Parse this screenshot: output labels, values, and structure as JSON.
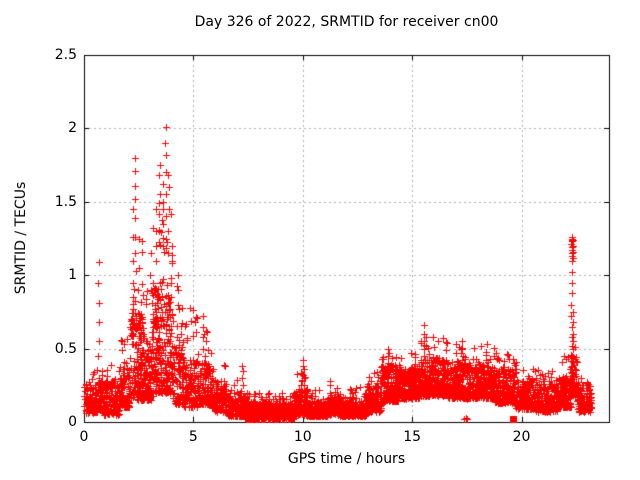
{
  "chart_data": {
    "type": "scatter",
    "title": "Day 326 of 2022, SRMTID for receiver cn00",
    "xlabel": "GPS time / hours",
    "ylabel": "SRMTID / TECUs",
    "xlim": [
      0,
      24
    ],
    "ylim": [
      0,
      2.5
    ],
    "xticks": [
      0,
      5,
      10,
      15,
      20
    ],
    "yticks": [
      0,
      0.5,
      1,
      1.5,
      2,
      2.5
    ],
    "grid": "dashed-at-ticks",
    "legend": "none",
    "marker": "plus",
    "marker_color": "#ff0000",
    "grid_color": "#b0b0b0",
    "axis_color": "#000000",
    "background": "#ffffff",
    "samples_per_hour": 150,
    "band_segments": [
      [
        0.0,
        0.5,
        0.06,
        0.25,
        0.35,
        1.2
      ],
      [
        0.5,
        0.9,
        0.07,
        0.28,
        0.4,
        1.2
      ],
      [
        0.9,
        1.6,
        0.05,
        0.28,
        0.45,
        1.1
      ],
      [
        1.6,
        2.1,
        0.1,
        0.38,
        0.6,
        1.2
      ],
      [
        2.1,
        2.7,
        0.15,
        0.75,
        1.35,
        1.8
      ],
      [
        2.7,
        3.1,
        0.15,
        0.6,
        1.15,
        1.6
      ],
      [
        3.1,
        4.05,
        0.2,
        0.9,
        1.5,
        1.8
      ],
      [
        4.05,
        4.55,
        0.12,
        0.55,
        0.95,
        1.3
      ],
      [
        4.55,
        5.2,
        0.1,
        0.42,
        0.8,
        1.2
      ],
      [
        5.2,
        5.85,
        0.12,
        0.4,
        0.68,
        1.2
      ],
      [
        5.85,
        6.5,
        0.07,
        0.28,
        0.42,
        1.1
      ],
      [
        6.5,
        7.35,
        0.04,
        0.18,
        0.32,
        1.3
      ],
      [
        7.35,
        9.6,
        0.02,
        0.13,
        0.2,
        2.0
      ],
      [
        9.6,
        10.2,
        0.05,
        0.22,
        0.38,
        1.5
      ],
      [
        10.2,
        11.1,
        0.04,
        0.14,
        0.26,
        1.3
      ],
      [
        11.1,
        11.7,
        0.05,
        0.18,
        0.28,
        1.3
      ],
      [
        11.7,
        12.9,
        0.04,
        0.14,
        0.24,
        1.3
      ],
      [
        12.9,
        13.6,
        0.07,
        0.25,
        0.38,
        1.3
      ],
      [
        13.6,
        14.45,
        0.14,
        0.38,
        0.48,
        1.5
      ],
      [
        14.45,
        15.35,
        0.16,
        0.36,
        0.48,
        1.6
      ],
      [
        15.35,
        16.6,
        0.18,
        0.42,
        0.58,
        1.6
      ],
      [
        16.6,
        17.65,
        0.16,
        0.4,
        0.54,
        1.5
      ],
      [
        17.65,
        18.75,
        0.16,
        0.38,
        0.52,
        1.5
      ],
      [
        18.75,
        19.75,
        0.13,
        0.36,
        0.48,
        1.5
      ],
      [
        19.75,
        20.65,
        0.09,
        0.28,
        0.4,
        1.3
      ],
      [
        20.65,
        21.65,
        0.07,
        0.26,
        0.36,
        1.2
      ],
      [
        21.65,
        22.25,
        0.1,
        0.3,
        0.45,
        1.5
      ],
      [
        22.25,
        22.55,
        0.18,
        0.45,
        0.55,
        1.3
      ],
      [
        22.55,
        23.2,
        0.07,
        0.25,
        0.33,
        1.2
      ]
    ],
    "columns": [
      {
        "h": 0.66,
        "v": [
          0.45,
          0.55,
          0.68,
          0.81,
          0.95,
          1.09
        ]
      },
      {
        "h": 2.24,
        "v": [
          0.85,
          0.95,
          1.1,
          1.26,
          1.45
        ]
      },
      {
        "h": 2.33,
        "v": [
          1.15,
          1.26,
          1.39,
          1.52,
          1.61,
          1.71,
          1.8
        ]
      },
      {
        "h": 2.5,
        "v": [
          0.9,
          1.05,
          1.25
        ]
      },
      {
        "h": 3.05,
        "v": [
          0.9,
          1.0,
          1.15
        ]
      },
      {
        "h": 3.3,
        "v": [
          1.1,
          1.2,
          1.3,
          1.45
        ]
      },
      {
        "h": 3.45,
        "v": [
          1.3,
          1.42,
          1.55,
          1.68,
          1.75
        ]
      },
      {
        "h": 3.6,
        "v": [
          1.2,
          1.35,
          1.5,
          1.62
        ]
      },
      {
        "h": 3.74,
        "v": [
          1.25,
          1.4,
          1.55,
          1.7,
          1.82,
          1.9,
          2.01
        ]
      },
      {
        "h": 3.85,
        "v": [
          1.15,
          1.3,
          1.45,
          1.6,
          1.68
        ]
      },
      {
        "h": 4.0,
        "v": [
          0.95,
          1.1,
          1.2
        ]
      },
      {
        "h": 4.3,
        "v": [
          0.8,
          0.9,
          1.0
        ]
      },
      {
        "h": 5.45,
        "v": [
          0.5,
          0.58,
          0.65,
          0.72
        ]
      },
      {
        "h": 5.55,
        "v": [
          0.45,
          0.55,
          0.62
        ]
      },
      {
        "h": 7.26,
        "v": [
          0.25,
          0.3,
          0.35,
          0.38
        ]
      },
      {
        "h": 10.0,
        "v": [
          0.28,
          0.33,
          0.38,
          0.42
        ]
      },
      {
        "h": 10.06,
        "v": [
          0.25,
          0.3,
          0.36
        ]
      },
      {
        "h": 11.25,
        "v": [
          0.2,
          0.25,
          0.28
        ]
      },
      {
        "h": 13.9,
        "v": [
          0.35,
          0.4,
          0.45,
          0.5
        ]
      },
      {
        "h": 15.55,
        "v": [
          0.45,
          0.5,
          0.55,
          0.6,
          0.66
        ]
      },
      {
        "h": 15.62,
        "v": [
          0.42,
          0.52,
          0.58
        ]
      },
      {
        "h": 17.3,
        "v": [
          0.45,
          0.5,
          0.55
        ]
      },
      {
        "h": 18.4,
        "v": [
          0.42,
          0.48,
          0.53
        ]
      },
      {
        "h": 22.3,
        "v": [
          0.52,
          0.58,
          0.65,
          0.72,
          0.8,
          0.88,
          0.95,
          1.02,
          1.1,
          1.13,
          1.15,
          1.17,
          1.19,
          1.21,
          1.23,
          1.24,
          1.25,
          1.26
        ]
      },
      {
        "h": 22.35,
        "v": [
          0.5,
          0.55,
          0.6,
          0.68,
          0.75,
          1.12,
          1.16,
          1.2,
          1.24
        ]
      }
    ],
    "low_points": [
      [
        17.38,
        0.02
      ],
      [
        17.44,
        0.03
      ],
      [
        17.5,
        0.02
      ]
    ],
    "square_points": [
      [
        19.6,
        0.02
      ]
    ],
    "data_end_hour": 23.2,
    "notable_points": {
      "max": [
        3.74,
        2.01
      ],
      "late_spike_top": [
        22.3,
        1.26
      ]
    }
  }
}
